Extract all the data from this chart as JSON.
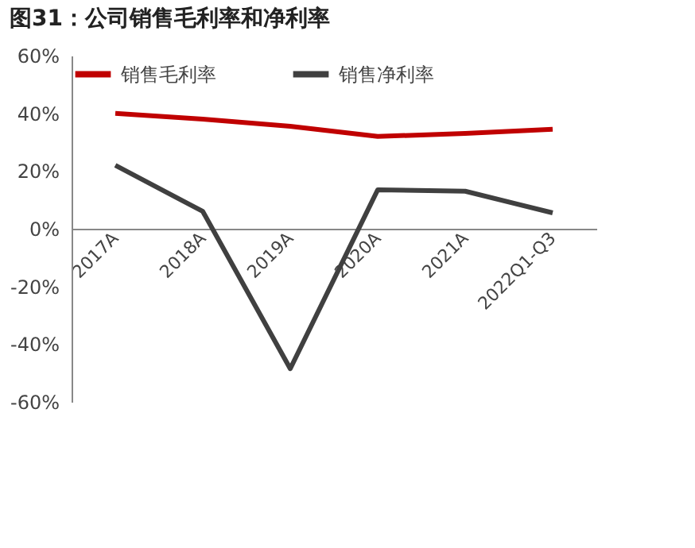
{
  "chart_data": {
    "type": "line",
    "title": "图31：公司销售毛利率和净利率",
    "categories": [
      "2017A",
      "2018A",
      "2019A",
      "2020A",
      "2021A",
      "2022Q1-Q3"
    ],
    "series": [
      {
        "name": "销售毛利率",
        "color": "#c00000",
        "values": [
          40,
          38,
          35.5,
          32,
          33,
          34.5
        ]
      },
      {
        "name": "销售净利率",
        "color": "#404040",
        "values": [
          22,
          6,
          -48.5,
          13.5,
          13,
          5.5
        ]
      }
    ],
    "ylim": [
      -60,
      60
    ],
    "yticks": [
      {
        "value": -60,
        "label": "-60%"
      },
      {
        "value": -40,
        "label": "-40%"
      },
      {
        "value": -20,
        "label": "-20%"
      },
      {
        "value": 0,
        "label": "0%"
      },
      {
        "value": 20,
        "label": "20%"
      },
      {
        "value": 40,
        "label": "40%"
      },
      {
        "value": 60,
        "label": "60%"
      }
    ],
    "grid": false,
    "legend": "top",
    "marker": "none",
    "line_style": "solid"
  }
}
